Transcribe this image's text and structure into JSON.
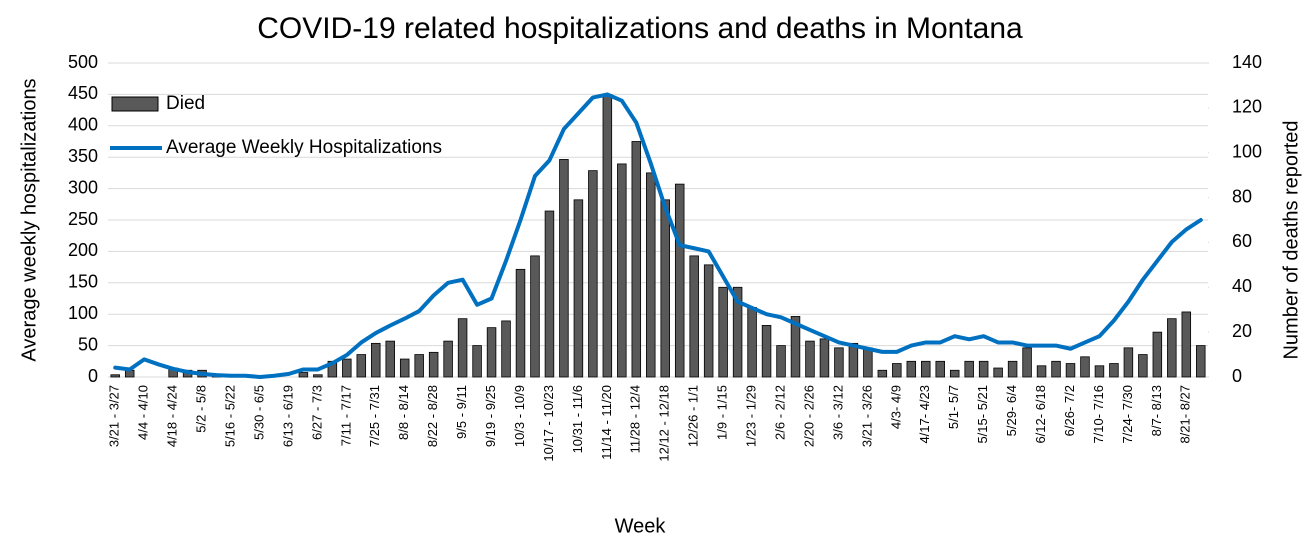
{
  "chart_data": {
    "type": "bar-line",
    "title": "COVID-19 related hospitalizations and deaths in Montana",
    "x_label": "Week",
    "y_label": "Average weekly hospitalizations",
    "y2_label": "Number of deaths reported",
    "categories": [
      "3/21 - 3/27",
      null,
      "4/4 - 4/10",
      null,
      "4/18 - 4/24",
      null,
      "5/2 - 5/8",
      null,
      "5/16 - 5/22",
      null,
      "5/30 - 6/5",
      null,
      "6/13 - 6/19",
      null,
      "6/27 - 7/3",
      null,
      "7/11 - 7/17",
      null,
      "7/25 - 7/31",
      null,
      "8/8 - 8/14",
      null,
      "8/22 - 8/28",
      null,
      "9/5 - 9/11",
      null,
      "9/19 - 9/25",
      null,
      "10/3 - 10/9",
      null,
      "10/17 - 10/23",
      null,
      "10/31 - 11/6",
      null,
      "11/14 - 11/20",
      null,
      "11/28 - 12/4",
      null,
      "12/12 - 12/18",
      null,
      "12/26 - 1/1",
      null,
      "1/9 - 1/15",
      null,
      "1/23 - 1/29",
      null,
      "2/6 - 2/12",
      null,
      "2/20 - 2/26",
      null,
      "3/6 - 3/12",
      null,
      "3/21 - 3/26",
      null,
      "4/3- 4/9",
      null,
      "4/17- 4/23",
      null,
      "5/1- 5/7",
      null,
      "5/15- 5/21",
      null,
      "5/29- 6/4",
      null,
      "6/12- 6/18",
      null,
      "6/26- 7/2",
      null,
      "7/10- 7/16",
      null,
      "7/24- 7/30",
      null,
      "8/7- 8/13",
      null,
      "8/21- 8/27",
      null
    ],
    "series": [
      {
        "name": "Died",
        "kind": "bar",
        "axis": "y2",
        "color": "#595959",
        "values": [
          1,
          3,
          0,
          0,
          4,
          3,
          3,
          1,
          0,
          0,
          0,
          0,
          0,
          2,
          1,
          7,
          8,
          10,
          15,
          16,
          8,
          10,
          11,
          16,
          26,
          14,
          22,
          25,
          48,
          54,
          74,
          97,
          79,
          92,
          126,
          95,
          105,
          91,
          79,
          86,
          54,
          50,
          40,
          40,
          31,
          23,
          14,
          27,
          16,
          17,
          13,
          15,
          13,
          3,
          6,
          7,
          7,
          7,
          3,
          7,
          7,
          4,
          7,
          13,
          5,
          7,
          6,
          9,
          5,
          6,
          13,
          10,
          20,
          26,
          29,
          14
        ]
      },
      {
        "name": "Average Weekly Hospitalizations",
        "kind": "line",
        "axis": "y",
        "color": "#0070c0",
        "values": [
          15,
          12,
          28,
          20,
          13,
          8,
          5,
          3,
          2,
          2,
          0,
          2,
          5,
          12,
          12,
          22,
          35,
          55,
          70,
          82,
          93,
          105,
          130,
          150,
          155,
          115,
          125,
          185,
          250,
          320,
          345,
          395,
          420,
          445,
          450,
          440,
          405,
          340,
          270,
          210,
          205,
          200,
          160,
          120,
          110,
          100,
          95,
          85,
          75,
          65,
          55,
          50,
          45,
          40,
          40,
          50,
          55,
          55,
          65,
          60,
          65,
          55,
          55,
          50,
          50,
          50,
          45,
          55,
          65,
          90,
          120,
          155,
          185,
          215,
          235,
          250
        ]
      }
    ],
    "ylim": [
      0,
      500
    ],
    "yticks": [
      0,
      50,
      100,
      150,
      200,
      250,
      300,
      350,
      400,
      450,
      500
    ],
    "y2lim": [
      0,
      140
    ],
    "y2ticks": [
      0,
      20,
      40,
      60,
      80,
      100,
      120,
      140
    ],
    "grid": true,
    "legend": "upper left"
  }
}
